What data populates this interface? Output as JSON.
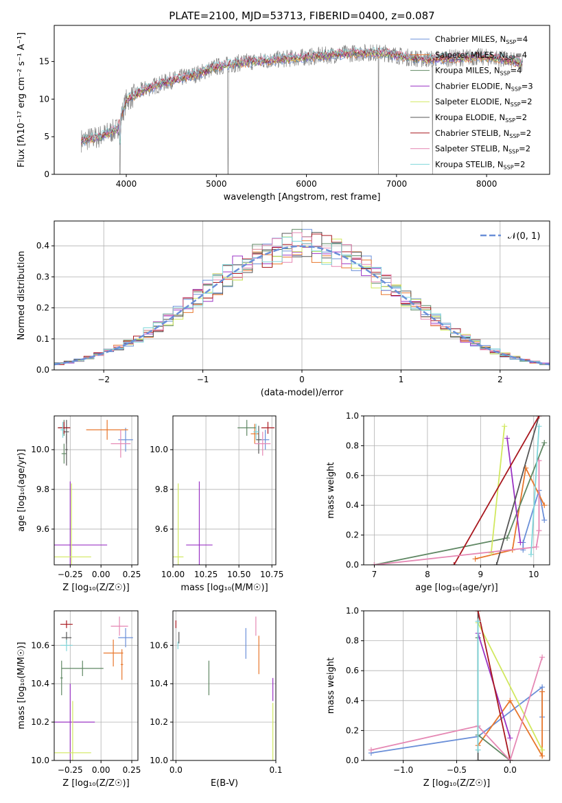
{
  "colors": [
    "#6a8fd8",
    "#e8762b",
    "#5f8763",
    "#9a33c4",
    "#d1e85e",
    "#555555",
    "#a8171e",
    "#e587b3",
    "#7fd6da"
  ],
  "chart_data": [
    {
      "id": "spectrum",
      "type": "line",
      "title": "PLATE=2100, MJD=53713, FIBERID=0400, z=0.087",
      "xlabel": "wavelength [Angstrom, rest frame]",
      "ylabel": "Flux [fλ10⁻¹⁷ erg cm⁻² s⁻¹ A⁻¹]",
      "xlim": [
        3200,
        8700
      ],
      "ylim": [
        0,
        19.8
      ],
      "xticks": [
        "4000",
        "5000",
        "6000",
        "7000",
        "8000"
      ],
      "xtick_values": [
        4000,
        5000,
        6000,
        7000,
        8000
      ],
      "yticks": [
        "0",
        "5",
        "10",
        "15"
      ],
      "ytick_values": [
        0,
        5,
        10,
        15
      ],
      "model_range": [
        3500,
        8400
      ],
      "data_continuum": [
        [
          3500,
          4.5
        ],
        [
          3700,
          5.0
        ],
        [
          3900,
          6.0
        ],
        [
          4000,
          9.8
        ],
        [
          4200,
          11.3
        ],
        [
          4500,
          12.5
        ],
        [
          4800,
          13.4
        ],
        [
          5000,
          14.3
        ],
        [
          5300,
          14.9
        ],
        [
          5600,
          15.2
        ],
        [
          5900,
          15.5
        ],
        [
          6100,
          15.7
        ],
        [
          6300,
          15.9
        ],
        [
          6500,
          16.1
        ],
        [
          6700,
          16.2
        ],
        [
          6900,
          16.1
        ],
        [
          7100,
          15.6
        ],
        [
          7300,
          15.3
        ],
        [
          7500,
          15.4
        ],
        [
          7700,
          15.5
        ],
        [
          7900,
          15.6
        ],
        [
          8100,
          15.5
        ],
        [
          8400,
          14.8
        ]
      ],
      "dips": [
        [
          3930,
          0
        ],
        [
          5130,
          0
        ],
        [
          6800,
          0
        ],
        [
          7400,
          0
        ]
      ],
      "legend": {
        "placement": "upper right",
        "entries": [
          {
            "name": "Chabrier MILES, N",
            "sub": "SSP",
            "value": "=4"
          },
          {
            "name": "Salpeter MILES, N",
            "sub": "SSP",
            "value": "=4"
          },
          {
            "name": "Kroupa MILES, N",
            "sub": "SSP",
            "value": "=4"
          },
          {
            "name": "Chabrier ELODIE, N",
            "sub": "SSP",
            "value": "=3"
          },
          {
            "name": "Salpeter ELODIE, N",
            "sub": "SSP",
            "value": "=2"
          },
          {
            "name": "Kroupa ELODIE, N",
            "sub": "SSP",
            "value": "=2"
          },
          {
            "name": "Chabrier STELIB, N",
            "sub": "SSP",
            "value": "=2"
          },
          {
            "name": "Salpeter STELIB, N",
            "sub": "SSP",
            "value": "=2"
          },
          {
            "name": "Kroupa STELIB, N",
            "sub": "SSP",
            "value": "=2"
          }
        ]
      }
    },
    {
      "id": "residuals",
      "type": "line",
      "xlabel": "(data-model)/error",
      "ylabel": "Normed distribution",
      "xlim": [
        -2.5,
        2.5
      ],
      "ylim": [
        0,
        0.48
      ],
      "xticks": [
        "−2",
        "−1",
        "0",
        "1",
        "2"
      ],
      "xtick_values": [
        -2,
        -1,
        0,
        1,
        2
      ],
      "yticks": [
        "0.0",
        "0.1",
        "0.2",
        "0.3",
        "0.4"
      ],
      "ytick_values": [
        0,
        0.1,
        0.2,
        0.3,
        0.4
      ],
      "bin_width": 0.1,
      "legend_label": "𝒩(0, 1)"
    },
    {
      "id": "age_vs_Z",
      "type": "scatter",
      "xlabel": "Z [log₁₀(Z/Z☉)]",
      "ylabel": "age  [log₁₀(age/yr)]",
      "xlim": [
        -0.38,
        0.3
      ],
      "ylim": [
        9.42,
        10.17
      ],
      "xticks": [
        "−0.25",
        "0.00",
        "0.25"
      ],
      "xtick_values": [
        -0.25,
        0,
        0.25
      ],
      "yticks": [
        "9.6",
        "9.8",
        "10.0"
      ],
      "ytick_values": [
        9.6,
        9.8,
        10.0
      ],
      "points": [
        {
          "c": 0,
          "x": 0.2,
          "y": 10.05,
          "dx": 0.06,
          "dy": 0.06
        },
        {
          "c": 1,
          "x": 0.05,
          "y": 10.1,
          "dx": 0.17,
          "dy": 0.05
        },
        {
          "c": 2,
          "x": -0.3,
          "y": 10.11,
          "dx": 0.05,
          "dy": 0.04
        },
        {
          "c": 2,
          "x": -0.3,
          "y": 9.98,
          "dx": 0.02,
          "dy": 0.05
        },
        {
          "c": 3,
          "x": -0.25,
          "y": 9.52,
          "dx": 0.3,
          "dy": 0.32
        },
        {
          "c": 4,
          "x": -0.24,
          "y": 9.46,
          "dx": 0.16,
          "dy": 0.37
        },
        {
          "c": 5,
          "x": -0.28,
          "y": 10.09,
          "dx": 0.02,
          "dy": 0.06
        },
        {
          "c": 5,
          "x": -0.28,
          "y": 10.0,
          "dx": 0.01,
          "dy": 0.08
        },
        {
          "c": 6,
          "x": -0.3,
          "y": 10.11,
          "dx": 0.05,
          "dy": 0.03
        },
        {
          "c": 7,
          "x": 0.16,
          "y": 10.03,
          "dx": 0.08,
          "dy": 0.07
        },
        {
          "c": 8,
          "x": -0.31,
          "y": 10.1,
          "dx": 0.02,
          "dy": 0.04
        }
      ]
    },
    {
      "id": "age_vs_mass",
      "type": "scatter",
      "xlabel": "mass [log₁₀(M/M☉)]",
      "ylabel": "",
      "xlim": [
        10.0,
        10.78
      ],
      "ylim": [
        9.42,
        10.17
      ],
      "xticks": [
        "10.00",
        "10.25",
        "10.50",
        "10.75"
      ],
      "xtick_values": [
        10.0,
        10.25,
        10.5,
        10.75
      ],
      "yticks": [
        "9.6",
        "9.8",
        "10.0"
      ],
      "ytick_values": [
        9.6,
        9.8,
        10.0
      ],
      "points": [
        {
          "c": 0,
          "x": 10.7,
          "y": 10.05,
          "dx": 0.03,
          "dy": 0.05
        },
        {
          "c": 1,
          "x": 10.62,
          "y": 10.08,
          "dx": 0.03,
          "dy": 0.05
        },
        {
          "c": 2,
          "x": 10.56,
          "y": 10.11,
          "dx": 0.07,
          "dy": 0.04
        },
        {
          "c": 3,
          "x": 10.2,
          "y": 9.52,
          "dx": 0.1,
          "dy": 0.32
        },
        {
          "c": 4,
          "x": 10.04,
          "y": 9.46,
          "dx": 0.04,
          "dy": 0.37
        },
        {
          "c": 5,
          "x": 10.65,
          "y": 10.05,
          "dx": 0.02,
          "dy": 0.07
        },
        {
          "c": 6,
          "x": 10.72,
          "y": 10.11,
          "dx": 0.05,
          "dy": 0.03
        },
        {
          "c": 7,
          "x": 10.68,
          "y": 10.03,
          "dx": 0.06,
          "dy": 0.06
        },
        {
          "c": 8,
          "x": 10.63,
          "y": 10.09,
          "dx": 0.02,
          "dy": 0.04
        }
      ]
    },
    {
      "id": "massweight_vs_age",
      "type": "line",
      "xlabel": "age  [log₁₀(age/yr)]",
      "ylabel": "mass weight",
      "xlim": [
        6.8,
        10.3
      ],
      "ylim": [
        0,
        1.0
      ],
      "xticks": [
        "7",
        "8",
        "9",
        "10"
      ],
      "xtick_values": [
        7,
        8,
        9,
        10
      ],
      "yticks": [
        "0.0",
        "0.2",
        "0.4",
        "0.6",
        "0.8",
        "1.0"
      ],
      "ytick_values": [
        0,
        0.2,
        0.4,
        0.6,
        0.8,
        1.0
      ],
      "series": [
        {
          "c": 0,
          "x": [
            9.8,
            9.8,
            10.1,
            10.2
          ],
          "y": [
            0.1,
            0.15,
            0.5,
            0.3
          ]
        },
        {
          "c": 1,
          "x": 8.9,
          "y": 0.0,
          "xs": [
            8.9,
            9.6,
            9.85,
            10.2
          ],
          "ys": [
            0.04,
            0.1,
            0.65,
            0.4
          ]
        },
        {
          "c": 2,
          "x": [
            7.0,
            9.5,
            10.2
          ],
          "y": [
            0.0,
            0.18,
            0.82
          ]
        },
        {
          "c": 3,
          "x": [
            9.5,
            9.75
          ],
          "y": [
            0.85,
            0.15
          ]
        },
        {
          "c": 4,
          "x": [
            9.2,
            9.45
          ],
          "y": [
            0.08,
            0.93
          ]
        },
        {
          "c": 5,
          "x": [
            9.3,
            10.1
          ],
          "y": [
            0.0,
            1.0
          ]
        },
        {
          "c": 6,
          "x": [
            8.5,
            10.1
          ],
          "y": [
            0.0,
            1.0
          ]
        },
        {
          "c": 7,
          "x": [
            7.0,
            10.05,
            10.1,
            10.1
          ],
          "y": [
            0.0,
            0.12,
            0.23,
            0.7
          ]
        },
        {
          "c": 8,
          "x": [
            9.95,
            10.1
          ],
          "y": [
            0.07,
            0.93
          ]
        }
      ]
    },
    {
      "id": "mass_vs_Z",
      "type": "scatter",
      "xlabel": "Z [log₁₀(Z/Z☉)]",
      "ylabel": "mass [log₁₀(M/M☉)]",
      "xlim": [
        -0.38,
        0.3
      ],
      "ylim": [
        10.0,
        10.78
      ],
      "xticks": [
        "−0.25",
        "0.00",
        "0.25"
      ],
      "xtick_values": [
        -0.25,
        0,
        0.25
      ],
      "yticks": [
        "10.0",
        "10.2",
        "10.4",
        "10.6"
      ],
      "ytick_values": [
        10.0,
        10.2,
        10.4,
        10.6
      ],
      "points": [
        {
          "c": 0,
          "x": 0.2,
          "y": 10.64,
          "dx": 0.06,
          "dy": 0.05
        },
        {
          "c": 1,
          "x": 0.1,
          "y": 10.56,
          "dx": 0.08,
          "dy": 0.07
        },
        {
          "c": 1,
          "x": 0.17,
          "y": 10.5,
          "dx": 0.01,
          "dy": 0.08
        },
        {
          "c": 2,
          "x": -0.15,
          "y": 10.48,
          "dx": 0.17,
          "dy": 0.04
        },
        {
          "c": 2,
          "x": -0.32,
          "y": 10.43,
          "dx": 0.01,
          "dy": 0.09
        },
        {
          "c": 3,
          "x": -0.25,
          "y": 10.2,
          "dx": 0.2,
          "dy": 0.2
        },
        {
          "c": 4,
          "x": -0.23,
          "y": 10.04,
          "dx": 0.15,
          "dy": 0.27
        },
        {
          "c": 5,
          "x": -0.28,
          "y": 10.64,
          "dx": 0.04,
          "dy": 0.03
        },
        {
          "c": 6,
          "x": -0.28,
          "y": 10.71,
          "dx": 0.05,
          "dy": 0.02
        },
        {
          "c": 7,
          "x": 0.15,
          "y": 10.7,
          "dx": 0.07,
          "dy": 0.05
        },
        {
          "c": 8,
          "x": -0.28,
          "y": 10.6,
          "dx": 0.05,
          "dy": 0.03
        }
      ]
    },
    {
      "id": "mass_vs_EBV",
      "type": "scatter",
      "xlabel": "E(B-V)",
      "ylabel": "",
      "xlim": [
        -0.003,
        0.1
      ],
      "ylim": [
        10.0,
        10.78
      ],
      "xticks": [
        "0.0",
        "0.1"
      ],
      "xtick_values": [
        0.0,
        0.1
      ],
      "yticks": [
        "10.0",
        "10.2",
        "10.4",
        "10.6"
      ],
      "ytick_values": [
        10.0,
        10.2,
        10.4,
        10.6
      ],
      "points": [
        {
          "c": 0,
          "x": 0.07,
          "y": 10.61,
          "dy": 0.08
        },
        {
          "c": 1,
          "x": 0.083,
          "y": 10.55,
          "dy": 0.1
        },
        {
          "c": 2,
          "x": 0.033,
          "y": 10.43,
          "dy": 0.09
        },
        {
          "c": 3,
          "x": 0.097,
          "y": 10.37,
          "dy": 0.06
        },
        {
          "c": 4,
          "x": 0.097,
          "y": 10.15,
          "dy": 0.15
        },
        {
          "c": 5,
          "x": 0.003,
          "y": 10.64,
          "dy": 0.03
        },
        {
          "c": 6,
          "x": 0.0,
          "y": 10.71,
          "dy": 0.02
        },
        {
          "c": 7,
          "x": 0.08,
          "y": 10.7,
          "dy": 0.05
        },
        {
          "c": 8,
          "x": 0.002,
          "y": 10.6,
          "dy": 0.02
        }
      ]
    },
    {
      "id": "massweight_vs_Z",
      "type": "line",
      "xlabel": "Z [log₁₀(Z/Z☉)]",
      "ylabel": "mass weight",
      "xlim": [
        -1.37,
        0.37
      ],
      "ylim": [
        0,
        1.0
      ],
      "xticks": [
        "−1.0",
        "−0.5",
        "0.0"
      ],
      "xtick_values": [
        -1.0,
        -0.5,
        0.0
      ],
      "yticks": [
        "0.0",
        "0.2",
        "0.4",
        "0.6",
        "0.8",
        "1.0"
      ],
      "ytick_values": [
        0,
        0.2,
        0.4,
        0.6,
        0.8,
        1.0
      ],
      "series": [
        {
          "c": 0,
          "x": [
            -1.3,
            -0.3,
            0.3,
            0.3
          ],
          "y": [
            0.05,
            0.16,
            0.49,
            0.29
          ]
        },
        {
          "c": 1,
          "x": [
            -0.3,
            0.0,
            0.3,
            0.3
          ],
          "y": [
            0.1,
            0.4,
            0.03,
            0.46
          ]
        },
        {
          "c": 2,
          "x": [
            -0.3,
            -0.3,
            0.0
          ],
          "y": [
            0.82,
            0.17,
            0.0
          ]
        },
        {
          "c": 3,
          "x": [
            -0.3,
            0.0
          ],
          "y": [
            0.85,
            0.15
          ]
        },
        {
          "c": 4,
          "x": [
            -0.3,
            0.3
          ],
          "y": [
            0.92,
            0.07
          ]
        },
        {
          "c": 5,
          "x": [
            -0.3,
            -0.3,
            0.0
          ],
          "y": [
            1.0,
            0.0,
            0.0
          ]
        },
        {
          "c": 6,
          "x": [
            -0.3,
            0.0
          ],
          "y": [
            1.0,
            0.0
          ]
        },
        {
          "c": 7,
          "x": [
            -1.3,
            -0.3,
            0.0,
            0.3
          ],
          "y": [
            0.07,
            0.23,
            0.0,
            0.69
          ]
        },
        {
          "c": 8,
          "x": [
            -0.3,
            -0.3
          ],
          "y": [
            0.93,
            0.07
          ]
        }
      ]
    }
  ]
}
